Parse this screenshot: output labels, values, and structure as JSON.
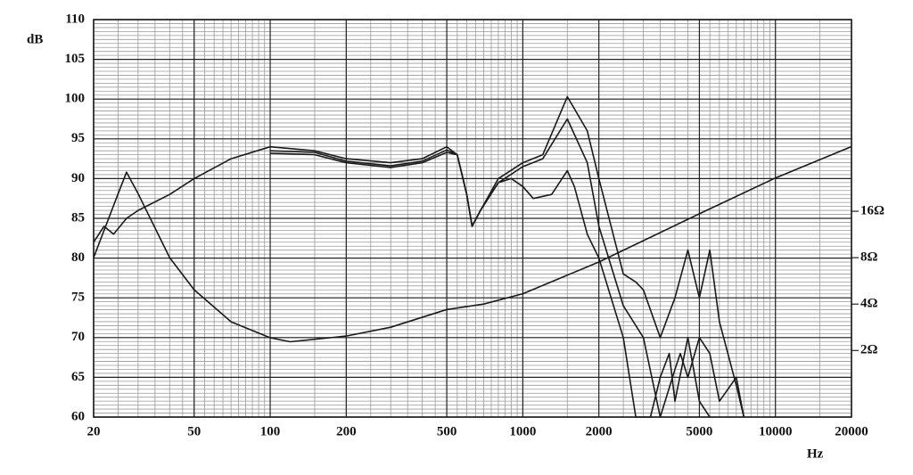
{
  "chart_data": {
    "type": "line",
    "y_label": "dB",
    "x_label": "Hz",
    "xlog": true,
    "y2log": true,
    "grid": true,
    "xlim": [
      20,
      20000
    ],
    "ylim": [
      60,
      110
    ],
    "y2lim": [
      0.74,
      280
    ],
    "xticks": [
      20,
      50,
      100,
      200,
      500,
      1000,
      2000,
      5000,
      10000,
      20000
    ],
    "yticks": [
      60,
      65,
      70,
      75,
      80,
      85,
      90,
      95,
      100,
      105,
      110
    ],
    "y2ticks": [
      {
        "value": 2,
        "label": "2Ω"
      },
      {
        "value": 4,
        "label": "4Ω"
      },
      {
        "value": 8,
        "label": "8Ω"
      },
      {
        "value": 16,
        "label": "16Ω"
      }
    ],
    "series": [
      {
        "color": "#1a1a1a",
        "x": [
          20,
          22,
          24,
          27,
          30,
          40,
          50,
          70,
          100,
          150,
          200,
          300,
          400,
          500,
          550,
          600,
          630,
          680,
          800,
          1000,
          1200,
          1500,
          1800,
          2000,
          2500,
          2800,
          3000,
          3500,
          4000,
          4500,
          5000,
          5500,
          6000,
          7000,
          7500
        ],
        "values": [
          82,
          84,
          83,
          85,
          86,
          88,
          90,
          92.5,
          94,
          93.5,
          92.5,
          92,
          92.5,
          94,
          93,
          88,
          84,
          86,
          90,
          92,
          93,
          100.3,
          96,
          90,
          78,
          77,
          76,
          70,
          75,
          81,
          75,
          81,
          72,
          64,
          60
        ]
      },
      {
        "color": "#1a1a1a",
        "x": [
          100,
          150,
          200,
          300,
          400,
          500,
          550,
          600,
          630,
          680,
          800,
          1000,
          1200,
          1500,
          1800,
          2000,
          2500,
          3000,
          3500,
          4000,
          4200,
          4500,
          5000,
          5500,
          6000,
          7000,
          7500
        ],
        "values": [
          93.5,
          93.3,
          92.2,
          91.6,
          92.2,
          93.6,
          93,
          88,
          84,
          86,
          89.5,
          91.5,
          92.5,
          97.5,
          92,
          84,
          74,
          70,
          60,
          66,
          68,
          65,
          70,
          68,
          62,
          65,
          60
        ]
      },
      {
        "color": "#1a1a1a",
        "x": [
          100,
          150,
          200,
          300,
          400,
          500,
          550,
          600,
          630,
          680,
          800,
          900,
          1000,
          1100,
          1300,
          1500,
          1600,
          1800,
          2000,
          2500,
          2800,
          3200,
          3500,
          3800,
          4000,
          4500,
          5000,
          5500
        ],
        "values": [
          93.2,
          93,
          92,
          91.4,
          92,
          93.3,
          93,
          88,
          84,
          86,
          89.5,
          90,
          89,
          87.5,
          88,
          91,
          89,
          83,
          80,
          70,
          60,
          60,
          65,
          68,
          62,
          70,
          62,
          60
        ]
      },
      {
        "color": "#1a1a1a",
        "axis": "y2",
        "x": [
          20,
          25,
          27,
          30,
          40,
          50,
          70,
          100,
          120,
          200,
          300,
          500,
          700,
          1000,
          2000,
          5000,
          10000,
          20000
        ],
        "values": [
          8,
          20.8,
          28.7,
          20.8,
          8,
          4.96,
          3.07,
          2.42,
          2.28,
          2.48,
          2.83,
          3.69,
          4.0,
          4.67,
          7.5,
          15.4,
          26.3,
          42
        ]
      }
    ]
  }
}
